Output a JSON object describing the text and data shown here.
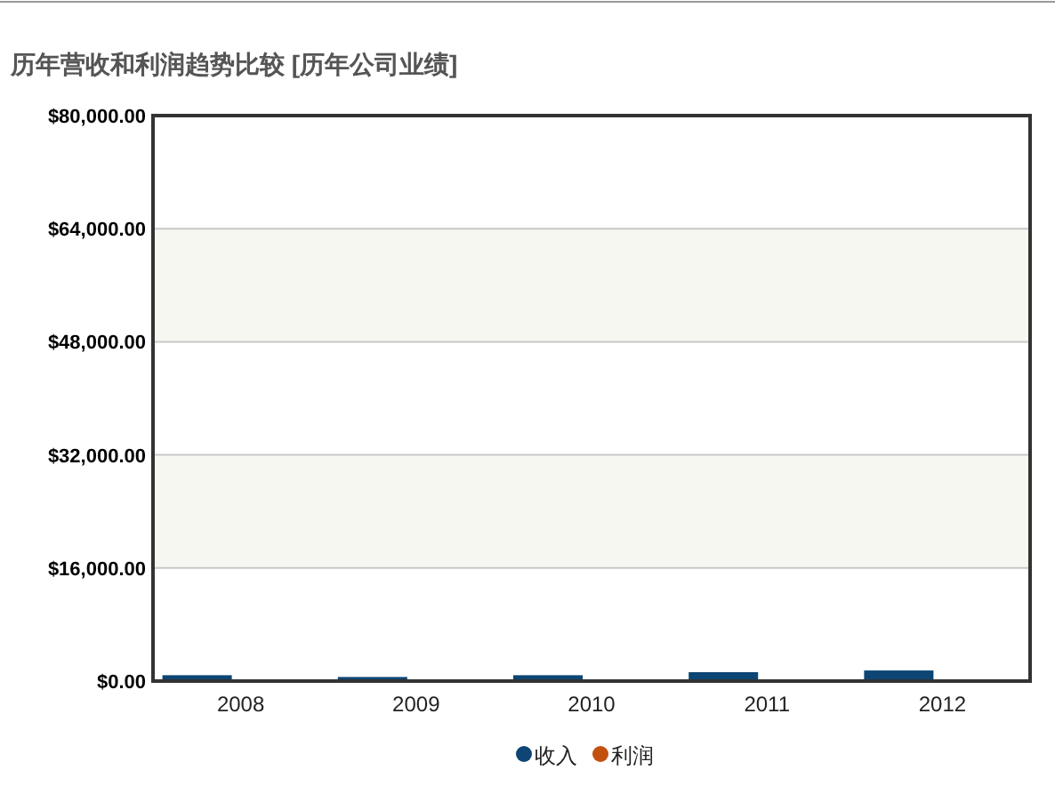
{
  "chart_data": {
    "type": "bar",
    "title": "历年营收和利润趋势比较 [历年公司业绩]",
    "categories": [
      "2008",
      "2009",
      "2010",
      "2011",
      "2012"
    ],
    "series": [
      {
        "name": "收入",
        "color": "#0d4574",
        "values": [
          830,
          580,
          830,
          1260,
          1500
        ]
      },
      {
        "name": "利润",
        "color": "#c2510d",
        "values": [
          0,
          0,
          0,
          0,
          0
        ]
      }
    ],
    "ylim": [
      0,
      80000
    ],
    "yticks": [
      {
        "value": 0,
        "label": "$0.00"
      },
      {
        "value": 16000,
        "label": "$16,000.00"
      },
      {
        "value": 32000,
        "label": "$32,000.00"
      },
      {
        "value": 48000,
        "label": "$48,000.00"
      },
      {
        "value": 64000,
        "label": "$64,000.00"
      },
      {
        "value": 80000,
        "label": "$80,000.00"
      }
    ],
    "grid": "y",
    "legend": "bottom"
  }
}
